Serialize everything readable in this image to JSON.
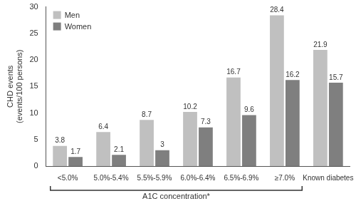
{
  "chart_data": {
    "type": "bar",
    "categories": [
      "<5.0%",
      "5.0%-5.4%",
      "5.5%-5.9%",
      "6.0%-6.4%",
      "6.5%-6.9%",
      "≥7.0%",
      "Known diabetes"
    ],
    "series": [
      {
        "name": "Men",
        "color": "#c0c0c0",
        "values": [
          3.8,
          6.4,
          8.7,
          10.2,
          16.7,
          28.4,
          21.9
        ]
      },
      {
        "name": "Women",
        "color": "#7f7f7f",
        "values": [
          1.7,
          2.1,
          3,
          7.3,
          9.6,
          16.2,
          15.7
        ]
      }
    ],
    "y_label": [
      "CHD events",
      "(events/100 persons)"
    ],
    "ylim": [
      0,
      30
    ],
    "yticks": [
      0,
      5,
      10,
      15,
      20,
      25,
      30
    ],
    "grid": false,
    "legend": "upper left",
    "data_labels": true,
    "annotations": [
      {
        "text": "A1C concentration*",
        "from": "<5.0%",
        "to": "≥7.0%"
      }
    ]
  }
}
